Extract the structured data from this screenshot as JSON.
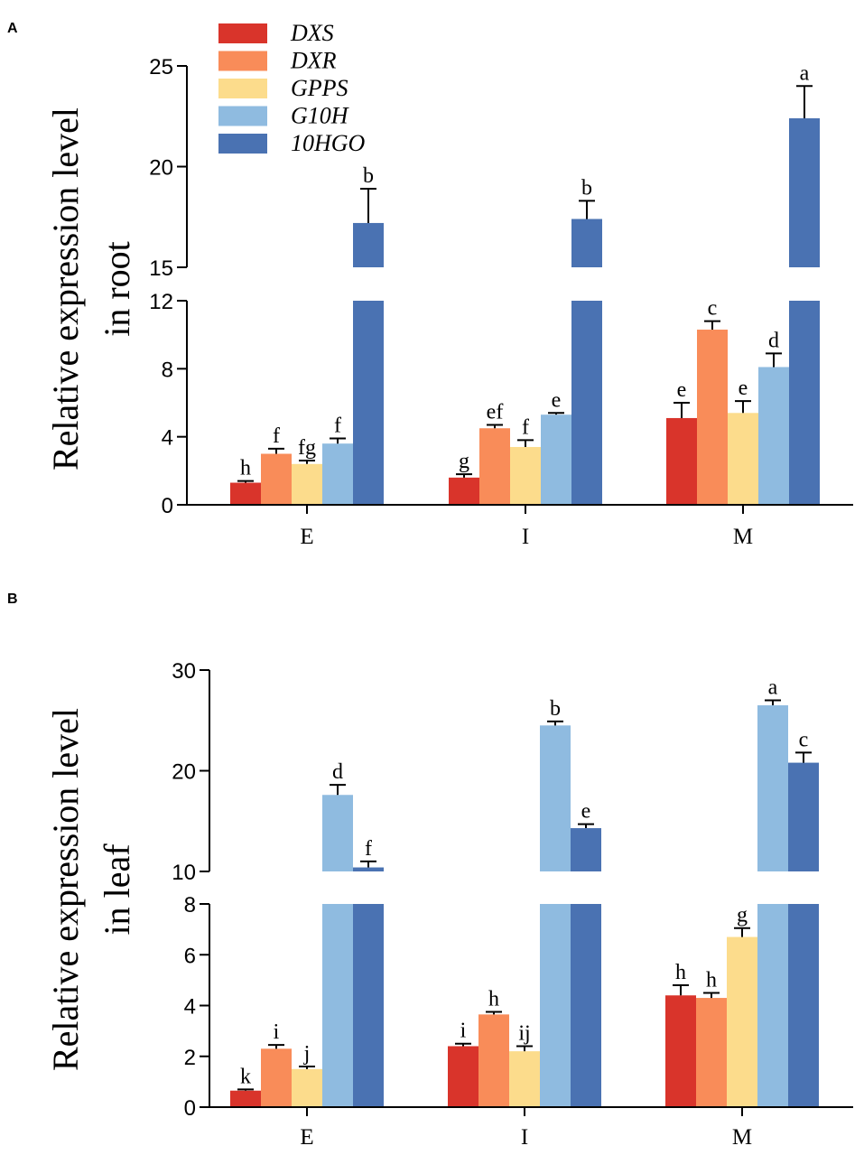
{
  "colors": {
    "DXS": "#d9342b",
    "DXR": "#f98c59",
    "GPPS": "#fcdc8c",
    "G10H": "#8fbbe0",
    "10HGO": "#4a72b2"
  },
  "legend": [
    "DXS",
    "DXR",
    "GPPS",
    "G10H",
    "10HGO"
  ],
  "chart_data": [
    {
      "panel": "A",
      "type": "bar",
      "title": "",
      "ylabel_line1": "Relative expression level",
      "ylabel_line2": "in root",
      "xlabel": "",
      "categories": [
        "E",
        "I",
        "M"
      ],
      "broken_axis": {
        "lower_range": [
          0,
          12
        ],
        "lower_ticks": [
          "0",
          "4",
          "8",
          "12"
        ],
        "upper_range": [
          15,
          25
        ],
        "upper_ticks": [
          "15",
          "20",
          "25"
        ]
      },
      "series": [
        {
          "name": "DXS",
          "values": [
            1.3,
            1.6,
            5.1
          ],
          "errors": [
            0.1,
            0.2,
            0.9
          ],
          "letters": [
            "h",
            "g",
            "e"
          ]
        },
        {
          "name": "DXR",
          "values": [
            3.0,
            4.5,
            10.3
          ],
          "errors": [
            0.3,
            0.2,
            0.5
          ],
          "letters": [
            "f",
            "ef",
            "c"
          ]
        },
        {
          "name": "GPPS",
          "values": [
            2.4,
            3.4,
            5.4
          ],
          "errors": [
            0.2,
            0.4,
            0.7
          ],
          "letters": [
            "fg",
            "f",
            "e"
          ]
        },
        {
          "name": "G10H",
          "values": [
            3.6,
            5.3,
            8.1
          ],
          "errors": [
            0.3,
            0.1,
            0.8
          ],
          "letters": [
            "f",
            "e",
            "d"
          ]
        },
        {
          "name": "10HGO",
          "values": [
            17.2,
            17.4,
            22.4
          ],
          "errors": [
            1.7,
            0.9,
            1.6
          ],
          "letters": [
            "b",
            "b",
            "a"
          ]
        }
      ]
    },
    {
      "panel": "B",
      "type": "bar",
      "title": "",
      "ylabel_line1": "Relative expression level",
      "ylabel_line2": "in leaf",
      "xlabel": "",
      "categories": [
        "E",
        "I",
        "M"
      ],
      "broken_axis": {
        "lower_range": [
          0,
          8
        ],
        "lower_ticks": [
          "0",
          "2",
          "4",
          "6",
          "8"
        ],
        "upper_range": [
          10,
          30
        ],
        "upper_ticks": [
          "10",
          "20",
          "30"
        ]
      },
      "series": [
        {
          "name": "DXS",
          "values": [
            0.65,
            2.4,
            4.4
          ],
          "errors": [
            0.05,
            0.1,
            0.4
          ],
          "letters": [
            "k",
            "i",
            "h"
          ]
        },
        {
          "name": "DXR",
          "values": [
            2.3,
            3.65,
            4.3
          ],
          "errors": [
            0.15,
            0.1,
            0.2
          ],
          "letters": [
            "i",
            "h",
            "h"
          ]
        },
        {
          "name": "GPPS",
          "values": [
            1.5,
            2.2,
            6.7
          ],
          "errors": [
            0.1,
            0.2,
            0.35
          ],
          "letters": [
            "j",
            "ij",
            "g"
          ]
        },
        {
          "name": "G10H",
          "values": [
            17.6,
            24.5,
            26.5
          ],
          "errors": [
            1.0,
            0.4,
            0.5
          ],
          "letters": [
            "d",
            "b",
            "a"
          ]
        },
        {
          "name": "10HGO",
          "values": [
            10.4,
            14.3,
            20.8
          ],
          "errors": [
            0.6,
            0.4,
            1.0
          ],
          "letters": [
            "f",
            "e",
            "c"
          ]
        }
      ]
    }
  ]
}
